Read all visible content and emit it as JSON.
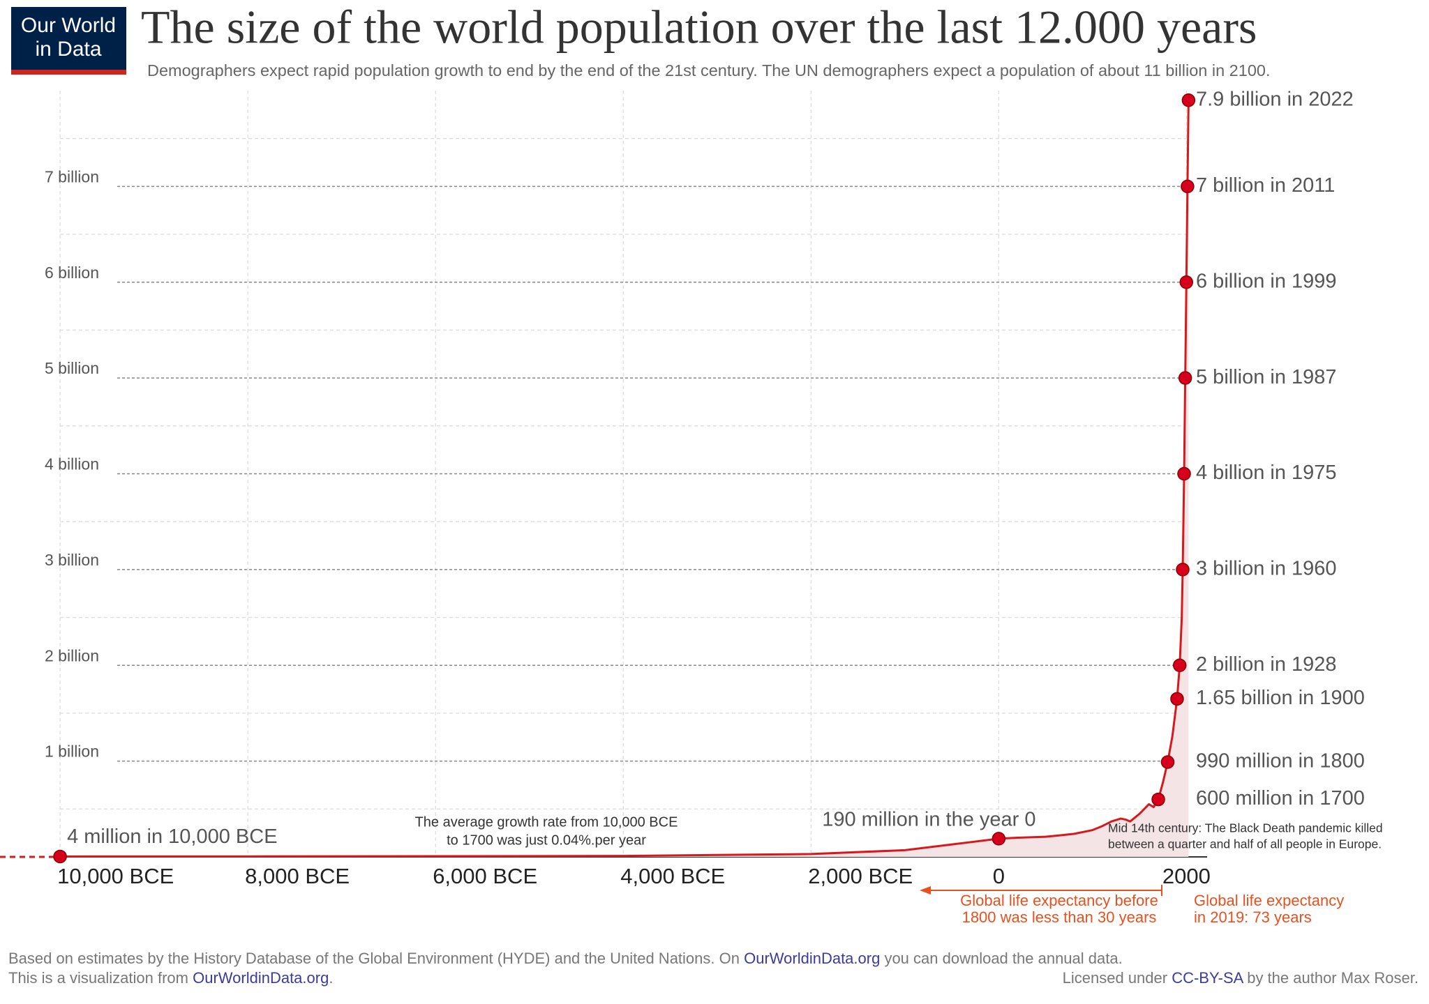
{
  "logo": [
    "Our World",
    "in Data"
  ],
  "chart_data": {
    "type": "line",
    "title": "The size of the world population over the last 12.000 years",
    "subtitle": "Demographers expect rapid population growth to end by the end of the 21st century. The UN demographers expect a population of about 11 billion in 2100.",
    "x": [
      -10000,
      -8000,
      -6000,
      -4000,
      -2000,
      -1000,
      0,
      200,
      500,
      800,
      1000,
      1100,
      1200,
      1300,
      1350,
      1400,
      1500,
      1600,
      1650,
      1700,
      1750,
      1800,
      1850,
      1900,
      1928,
      1950,
      1960,
      1975,
      1987,
      1999,
      2011,
      2022
    ],
    "values": [
      0.004,
      0.005,
      0.007,
      0.01,
      0.03,
      0.07,
      0.19,
      0.2,
      0.21,
      0.24,
      0.28,
      0.32,
      0.37,
      0.4,
      0.39,
      0.37,
      0.45,
      0.55,
      0.52,
      0.6,
      0.78,
      0.99,
      1.26,
      1.65,
      2,
      2.5,
      3,
      4,
      5,
      6,
      7,
      7.9
    ],
    "color": "#d7191c",
    "highlights": {
      "x": [
        -10000,
        0,
        1700,
        1800,
        1900,
        1928,
        1960,
        1975,
        1987,
        1999,
        2011,
        2022
      ],
      "values": [
        0.004,
        0.19,
        0.6,
        0.99,
        1.65,
        2,
        3,
        4,
        5,
        6,
        7,
        7.9
      ],
      "value_labels": [
        "4 million in 10,000 BCE",
        "190 million in the year 0",
        "600 million in 1700",
        "990 million in 1800",
        "1.65 billion in 1900",
        "2 billion in 1928",
        "3 billion in 1960",
        "4 billion in 1975",
        "5 billion in 1987",
        "6 billion in 1999",
        "7 billion in 2011",
        "7.9 billion in 2022"
      ]
    },
    "xlim": [
      -10640,
      2220
    ],
    "xticks": [
      {
        "value": -10000,
        "label": "10,000 BCE"
      },
      {
        "value": -8000,
        "label": "8,000 BCE"
      },
      {
        "value": -6000,
        "label": "6,000 BCE"
      },
      {
        "value": -4000,
        "label": "4,000 BCE"
      },
      {
        "value": -2000,
        "label": "2,000 BCE"
      },
      0,
      2000
    ],
    "ylim": [
      0,
      8
    ],
    "yticks": [
      {
        "value": 1,
        "label": "1 billion"
      },
      {
        "value": 2,
        "label": "2 billion"
      },
      {
        "value": 3,
        "label": "3 billion"
      },
      {
        "value": 4,
        "label": "4 billion"
      },
      {
        "value": 5,
        "label": "5 billion"
      },
      {
        "value": 6,
        "label": "6 billion"
      },
      {
        "value": 7,
        "label": "7 billion"
      }
    ],
    "minor_yticks": [
      0.5,
      1.5,
      2.5,
      3.5,
      4.5,
      5.5,
      6.5,
      7.5
    ],
    "grid": true,
    "annotations": {
      "growth_note": [
        "The average growth rate from 10,000 BCE",
        "to 1700 was just  0.04%.per year"
      ],
      "black_death_note": [
        "Mid 14th century: The Black Death pandemic killed",
        "between a quarter and half of all people in Europe."
      ],
      "life_expectancy_before": [
        "Global life expectancy before",
        "1800 was less than 30 years"
      ],
      "life_expectancy_2019": [
        "Global life expectancy",
        "in 2019: 73 years"
      ]
    }
  },
  "footer": {
    "source": [
      "Based on estimates by the History Database of the Global Environment (HYDE) and the United Nations. On ",
      "OurWorldinData.org",
      " you can download the annual data."
    ],
    "visualization": [
      "This is a visualization from ",
      "OurWorldinData.org",
      "."
    ],
    "license": [
      "Licensed under ",
      "CC-BY-SA",
      " by the author Max Roser."
    ]
  }
}
